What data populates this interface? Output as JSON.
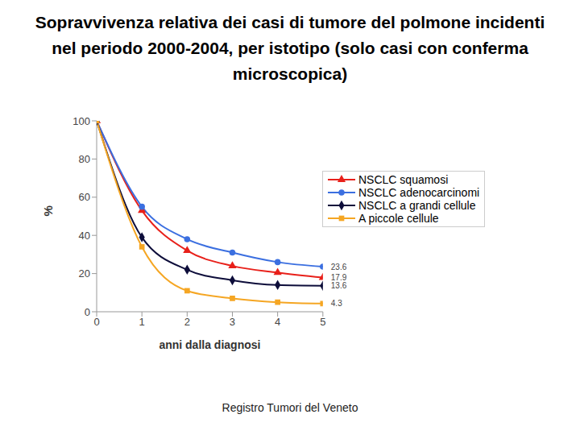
{
  "chart_data": {
    "type": "line",
    "title": "Sopravvivenza relativa dei casi di tumore del polmone incidenti nel periodo 2000-2004, per istotipo (solo casi con conferma microscopica)",
    "x_label": "anni dalla diagnosi",
    "y_label": "%",
    "source": "Registro Tumori del Veneto",
    "x": [
      0,
      1,
      2,
      3,
      4,
      5
    ],
    "series": [
      {
        "name": "NSCLC squamosi",
        "color": "#e8201a",
        "marker": "triangle",
        "values": [
          100,
          53,
          32,
          24,
          20.5,
          17.9
        ]
      },
      {
        "name": "NSCLC adenocarcinomi",
        "color": "#3b6fe0",
        "marker": "circle",
        "values": [
          100,
          55,
          38,
          31,
          26,
          23.6
        ]
      },
      {
        "name": "NSCLC a grandi cellule",
        "color": "#0d0d3a",
        "marker": "diamond",
        "values": [
          100,
          39,
          22,
          16.5,
          14,
          13.6
        ]
      },
      {
        "name": "A piccole cellule",
        "color": "#f5a623",
        "marker": "square",
        "values": [
          100,
          34,
          11,
          7,
          5,
          4.3
        ]
      }
    ],
    "annotations": [
      {
        "x": 5,
        "y": 23.6,
        "text": "23.6"
      },
      {
        "x": 5,
        "y": 17.9,
        "text": "17.9"
      },
      {
        "x": 5,
        "y": 13.6,
        "text": "13.6"
      },
      {
        "x": 5,
        "y": 4.3,
        "text": "4.3"
      }
    ],
    "xlim": [
      0,
      5
    ],
    "xticks": [
      0,
      1,
      2,
      3,
      4,
      5
    ],
    "ylim": [
      0,
      100
    ],
    "yticks": [
      0,
      20,
      40,
      60,
      80,
      100
    ],
    "grid": false,
    "legend": "upper right"
  }
}
